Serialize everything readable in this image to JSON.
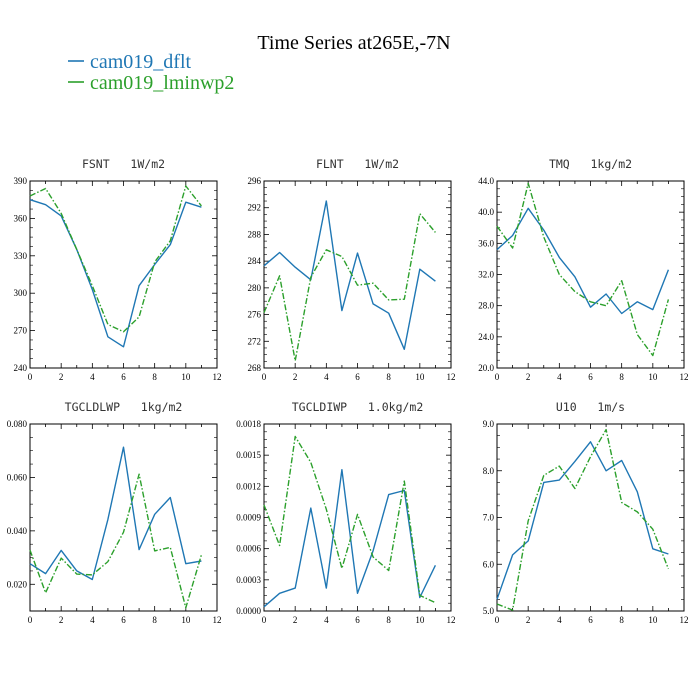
{
  "figure": {
    "title": "Time Series at265E,-7N"
  },
  "legend": [
    {
      "name": "cam019_dflt",
      "color": "#1f77b4",
      "dash": "none"
    },
    {
      "name": "cam019_lminwp2",
      "color": "#2ca02c",
      "dash": "dashdot"
    }
  ],
  "chart_data": [
    {
      "type": "line",
      "title": "FSNT   1W/m2",
      "x": [
        0,
        1,
        2,
        3,
        4,
        5,
        6,
        7,
        8,
        9,
        10,
        11
      ],
      "xlim": [
        0,
        12
      ],
      "xticks": [
        0,
        2,
        4,
        6,
        8,
        10,
        12
      ],
      "ylim": [
        240,
        390
      ],
      "yticks": [
        240,
        270,
        300,
        330,
        360,
        390
      ],
      "ytick_labels": [
        "240",
        "270",
        "300",
        "330",
        "360",
        "390"
      ],
      "series": [
        {
          "name": "cam019_dflt",
          "values": [
            375,
            371,
            362,
            335,
            303,
            265,
            257,
            306,
            323,
            339,
            373,
            369
          ]
        },
        {
          "name": "cam019_lminwp2",
          "values": [
            378,
            384,
            364,
            335,
            306,
            275,
            269,
            281,
            325,
            342,
            386,
            370
          ]
        }
      ]
    },
    {
      "type": "line",
      "title": "FLNT   1W/m2",
      "x": [
        0,
        1,
        2,
        3,
        4,
        5,
        6,
        7,
        8,
        9,
        10,
        11
      ],
      "xlim": [
        0,
        12
      ],
      "xticks": [
        0,
        2,
        4,
        6,
        8,
        10,
        12
      ],
      "ylim": [
        268,
        296
      ],
      "yticks": [
        268,
        272,
        276,
        280,
        284,
        288,
        292,
        296
      ],
      "ytick_labels": [
        "268",
        "272",
        "276",
        "280",
        "284",
        "288",
        "292",
        "296"
      ],
      "series": [
        {
          "name": "cam019_dflt",
          "values": [
            283.3,
            285.3,
            283.1,
            281.2,
            293.0,
            276.6,
            285.2,
            277.6,
            276.2,
            270.8,
            282.8,
            281.0
          ]
        },
        {
          "name": "cam019_lminwp2",
          "values": [
            276.3,
            281.8,
            269.1,
            281.6,
            285.7,
            284.7,
            280.4,
            280.7,
            278.2,
            278.3,
            291.1,
            288.3
          ]
        }
      ]
    },
    {
      "type": "line",
      "title": "TMQ   1kg/m2",
      "x": [
        0,
        1,
        2,
        3,
        4,
        5,
        6,
        7,
        8,
        9,
        10,
        11
      ],
      "xlim": [
        0,
        12
      ],
      "xticks": [
        0,
        2,
        4,
        6,
        8,
        10,
        12
      ],
      "ylim": [
        20,
        44
      ],
      "yticks": [
        20,
        24,
        28,
        32,
        36,
        40,
        44
      ],
      "ytick_labels": [
        "20.0",
        "24.0",
        "28.0",
        "32.0",
        "36.0",
        "40.0",
        "44.0"
      ],
      "series": [
        {
          "name": "cam019_dflt",
          "values": [
            35.2,
            37.0,
            40.5,
            37.7,
            34.2,
            31.7,
            27.8,
            29.5,
            27.0,
            28.5,
            27.5,
            32.6
          ]
        },
        {
          "name": "cam019_lminwp2",
          "values": [
            38.2,
            35.4,
            43.7,
            36.8,
            32.0,
            29.8,
            28.5,
            28.0,
            31.2,
            24.3,
            21.6,
            28.8
          ]
        }
      ]
    },
    {
      "type": "line",
      "title": "TGCLDLWP   1kg/m2",
      "x": [
        0,
        1,
        2,
        3,
        4,
        5,
        6,
        7,
        8,
        9,
        10,
        11
      ],
      "xlim": [
        0,
        12
      ],
      "xticks": [
        0,
        2,
        4,
        6,
        8,
        10,
        12
      ],
      "ylim": [
        0.01,
        0.08
      ],
      "yticks": [
        0.02,
        0.04,
        0.06,
        0.08
      ],
      "ytick_labels": [
        "0.020",
        "0.040",
        "0.060",
        "0.080"
      ],
      "series": [
        {
          "name": "cam019_dflt",
          "values": [
            0.0277,
            0.024,
            0.0327,
            0.025,
            0.0218,
            0.0443,
            0.0713,
            0.033,
            0.0462,
            0.0525,
            0.0277,
            0.0287
          ]
        },
        {
          "name": "cam019_lminwp2",
          "values": [
            0.0328,
            0.0168,
            0.0298,
            0.0238,
            0.0235,
            0.0285,
            0.0395,
            0.0612,
            0.0325,
            0.0338,
            0.0112,
            0.031
          ]
        }
      ]
    },
    {
      "type": "line",
      "title": "TGCLDIWP   1.0kg/m2",
      "x": [
        0,
        1,
        2,
        3,
        4,
        5,
        6,
        7,
        8,
        9,
        10,
        11
      ],
      "xlim": [
        0,
        12
      ],
      "xticks": [
        0,
        2,
        4,
        6,
        8,
        10,
        12
      ],
      "ylim": [
        0,
        0.0018
      ],
      "yticks": [
        0,
        0.0003,
        0.0006,
        0.0009,
        0.0012,
        0.0015,
        0.0018
      ],
      "ytick_labels": [
        "0.0000",
        "0.0003",
        "0.0006",
        "0.0009",
        "0.0012",
        "0.0015",
        "0.0018"
      ],
      "series": [
        {
          "name": "cam019_dflt",
          "values": [
            4e-05,
            0.00017,
            0.00022,
            0.00099,
            0.00022,
            0.00136,
            0.00017,
            0.00058,
            0.00112,
            0.00116,
            0.00013,
            0.00044
          ]
        },
        {
          "name": "cam019_lminwp2",
          "values": [
            0.00102,
            0.00063,
            0.00168,
            0.00143,
            0.00098,
            0.00041,
            0.00093,
            0.00052,
            0.00039,
            0.00125,
            0.00015,
            8e-05
          ]
        }
      ]
    },
    {
      "type": "line",
      "title": "U10   1m/s",
      "x": [
        0,
        1,
        2,
        3,
        4,
        5,
        6,
        7,
        8,
        9,
        10,
        11
      ],
      "xlim": [
        0,
        12
      ],
      "xticks": [
        0,
        2,
        4,
        6,
        8,
        10,
        12
      ],
      "ylim": [
        5,
        9
      ],
      "yticks": [
        5,
        6,
        7,
        8,
        9
      ],
      "ytick_labels": [
        "5.0",
        "6.0",
        "7.0",
        "8.0",
        "9.0"
      ],
      "series": [
        {
          "name": "cam019_dflt",
          "values": [
            5.25,
            6.2,
            6.5,
            7.75,
            7.8,
            8.2,
            8.62,
            8.0,
            8.22,
            7.55,
            6.33,
            6.22
          ]
        },
        {
          "name": "cam019_lminwp2",
          "values": [
            5.15,
            5.02,
            6.93,
            7.9,
            8.1,
            7.62,
            8.3,
            8.88,
            7.32,
            7.12,
            6.75,
            5.9
          ]
        }
      ]
    }
  ]
}
